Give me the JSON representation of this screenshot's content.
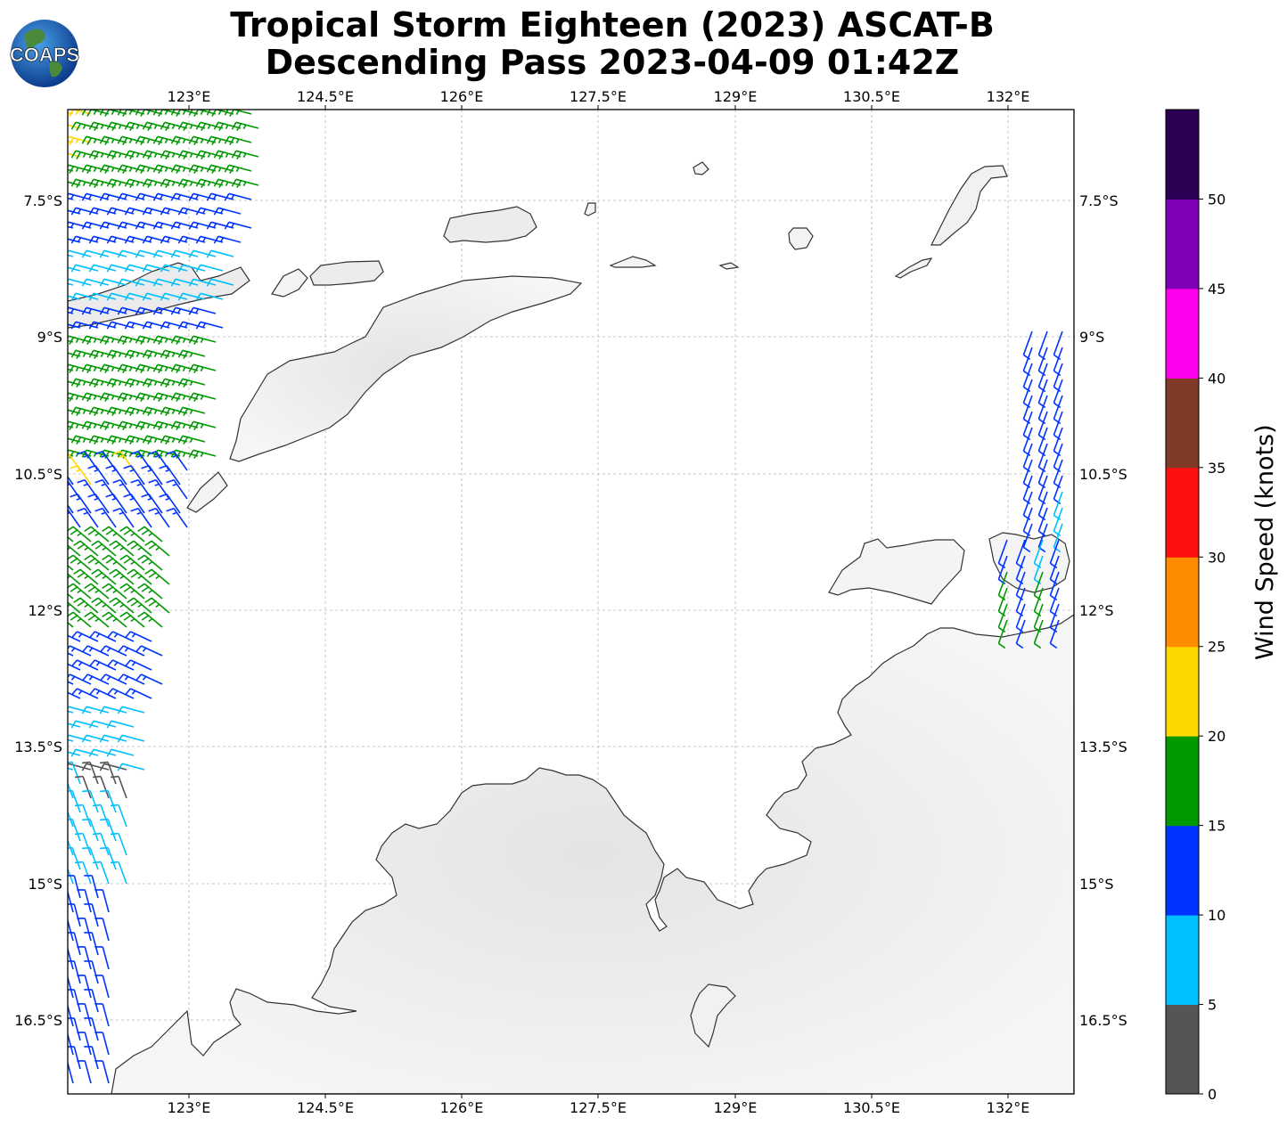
{
  "title": {
    "line1": "Tropical Storm Eighteen (2023) ASCAT-B",
    "line2": "Descending Pass 2023-04-09 01:42Z"
  },
  "logo": {
    "text": "COAPS"
  },
  "map": {
    "lon_labels": [
      "123°E",
      "124.5°E",
      "126°E",
      "127.5°E",
      "129°E",
      "130.5°E",
      "132°E"
    ],
    "lat_labels": [
      "7.5°S",
      "9°S",
      "10.5°S",
      "12°S",
      "13.5°S",
      "15°S",
      "16.5°S"
    ]
  },
  "colorbar": {
    "label": "Wind Speed (knots)",
    "ticks": [
      "0",
      "5",
      "10",
      "15",
      "20",
      "25",
      "30",
      "35",
      "40",
      "45",
      "50"
    ],
    "colors": [
      "#555555",
      "#00bfff",
      "#0033ff",
      "#009900",
      "#ffd700",
      "#ff8c00",
      "#ff1010",
      "#7f3b28",
      "#ff00ee",
      "#8000b8",
      "#2a0055"
    ]
  }
}
